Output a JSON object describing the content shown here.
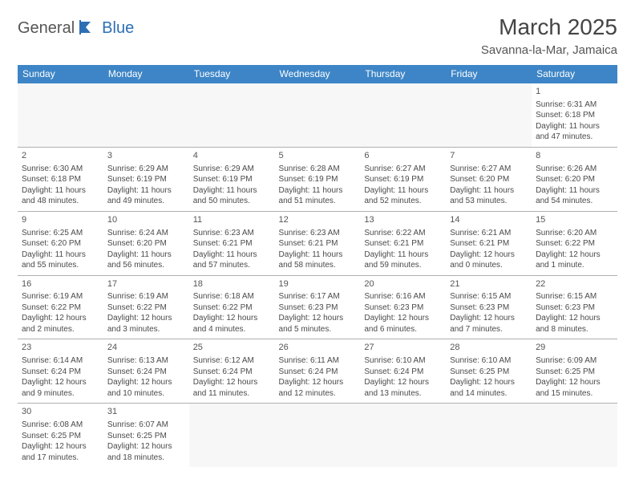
{
  "logo": {
    "part1": "General",
    "part2": "Blue"
  },
  "title": "March 2025",
  "location": "Savanna-la-Mar, Jamaica",
  "colors": {
    "header_bg": "#3d85c6",
    "header_text": "#ffffff",
    "cell_border_top": "#3d85c6",
    "cell_border_bottom": "#b0b0b0",
    "text": "#4a4a4a",
    "logo_blue": "#2d6fb5"
  },
  "weekdays": [
    "Sunday",
    "Monday",
    "Tuesday",
    "Wednesday",
    "Thursday",
    "Friday",
    "Saturday"
  ],
  "weeks": [
    [
      null,
      null,
      null,
      null,
      null,
      null,
      {
        "d": "1",
        "sr": "6:31 AM",
        "ss": "6:18 PM",
        "dl": "11 hours and 47 minutes."
      }
    ],
    [
      {
        "d": "2",
        "sr": "6:30 AM",
        "ss": "6:18 PM",
        "dl": "11 hours and 48 minutes."
      },
      {
        "d": "3",
        "sr": "6:29 AM",
        "ss": "6:19 PM",
        "dl": "11 hours and 49 minutes."
      },
      {
        "d": "4",
        "sr": "6:29 AM",
        "ss": "6:19 PM",
        "dl": "11 hours and 50 minutes."
      },
      {
        "d": "5",
        "sr": "6:28 AM",
        "ss": "6:19 PM",
        "dl": "11 hours and 51 minutes."
      },
      {
        "d": "6",
        "sr": "6:27 AM",
        "ss": "6:19 PM",
        "dl": "11 hours and 52 minutes."
      },
      {
        "d": "7",
        "sr": "6:27 AM",
        "ss": "6:20 PM",
        "dl": "11 hours and 53 minutes."
      },
      {
        "d": "8",
        "sr": "6:26 AM",
        "ss": "6:20 PM",
        "dl": "11 hours and 54 minutes."
      }
    ],
    [
      {
        "d": "9",
        "sr": "6:25 AM",
        "ss": "6:20 PM",
        "dl": "11 hours and 55 minutes."
      },
      {
        "d": "10",
        "sr": "6:24 AM",
        "ss": "6:20 PM",
        "dl": "11 hours and 56 minutes."
      },
      {
        "d": "11",
        "sr": "6:23 AM",
        "ss": "6:21 PM",
        "dl": "11 hours and 57 minutes."
      },
      {
        "d": "12",
        "sr": "6:23 AM",
        "ss": "6:21 PM",
        "dl": "11 hours and 58 minutes."
      },
      {
        "d": "13",
        "sr": "6:22 AM",
        "ss": "6:21 PM",
        "dl": "11 hours and 59 minutes."
      },
      {
        "d": "14",
        "sr": "6:21 AM",
        "ss": "6:21 PM",
        "dl": "12 hours and 0 minutes."
      },
      {
        "d": "15",
        "sr": "6:20 AM",
        "ss": "6:22 PM",
        "dl": "12 hours and 1 minute."
      }
    ],
    [
      {
        "d": "16",
        "sr": "6:19 AM",
        "ss": "6:22 PM",
        "dl": "12 hours and 2 minutes."
      },
      {
        "d": "17",
        "sr": "6:19 AM",
        "ss": "6:22 PM",
        "dl": "12 hours and 3 minutes."
      },
      {
        "d": "18",
        "sr": "6:18 AM",
        "ss": "6:22 PM",
        "dl": "12 hours and 4 minutes."
      },
      {
        "d": "19",
        "sr": "6:17 AM",
        "ss": "6:23 PM",
        "dl": "12 hours and 5 minutes."
      },
      {
        "d": "20",
        "sr": "6:16 AM",
        "ss": "6:23 PM",
        "dl": "12 hours and 6 minutes."
      },
      {
        "d": "21",
        "sr": "6:15 AM",
        "ss": "6:23 PM",
        "dl": "12 hours and 7 minutes."
      },
      {
        "d": "22",
        "sr": "6:15 AM",
        "ss": "6:23 PM",
        "dl": "12 hours and 8 minutes."
      }
    ],
    [
      {
        "d": "23",
        "sr": "6:14 AM",
        "ss": "6:24 PM",
        "dl": "12 hours and 9 minutes."
      },
      {
        "d": "24",
        "sr": "6:13 AM",
        "ss": "6:24 PM",
        "dl": "12 hours and 10 minutes."
      },
      {
        "d": "25",
        "sr": "6:12 AM",
        "ss": "6:24 PM",
        "dl": "12 hours and 11 minutes."
      },
      {
        "d": "26",
        "sr": "6:11 AM",
        "ss": "6:24 PM",
        "dl": "12 hours and 12 minutes."
      },
      {
        "d": "27",
        "sr": "6:10 AM",
        "ss": "6:24 PM",
        "dl": "12 hours and 13 minutes."
      },
      {
        "d": "28",
        "sr": "6:10 AM",
        "ss": "6:25 PM",
        "dl": "12 hours and 14 minutes."
      },
      {
        "d": "29",
        "sr": "6:09 AM",
        "ss": "6:25 PM",
        "dl": "12 hours and 15 minutes."
      }
    ],
    [
      {
        "d": "30",
        "sr": "6:08 AM",
        "ss": "6:25 PM",
        "dl": "12 hours and 17 minutes."
      },
      {
        "d": "31",
        "sr": "6:07 AM",
        "ss": "6:25 PM",
        "dl": "12 hours and 18 minutes."
      },
      null,
      null,
      null,
      null,
      null
    ]
  ],
  "labels": {
    "sunrise": "Sunrise:",
    "sunset": "Sunset:",
    "daylight": "Daylight:"
  }
}
